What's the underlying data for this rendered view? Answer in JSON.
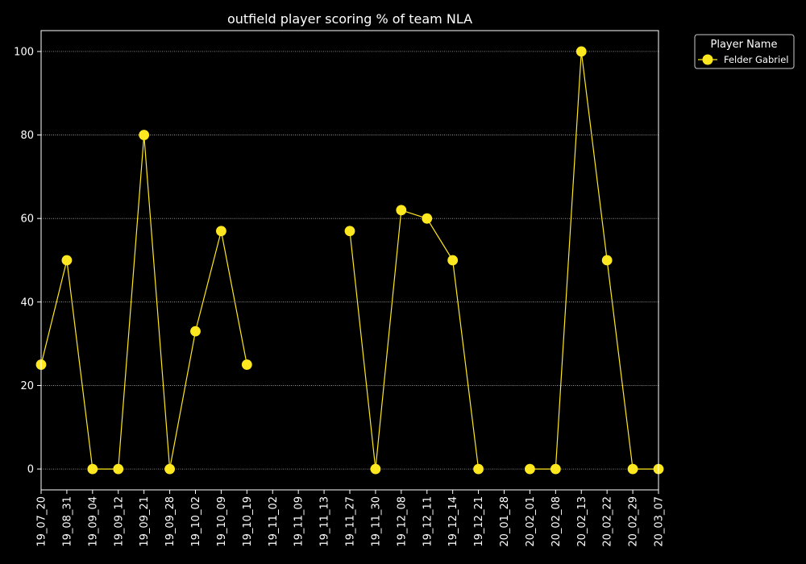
{
  "chart_data": {
    "type": "line",
    "title": "outfield player scoring % of team NLA",
    "xlabel": "",
    "ylabel": "",
    "ylim": [
      -5,
      105
    ],
    "yticks": [
      0,
      20,
      40,
      60,
      80,
      100
    ],
    "grid": "horizontal dotted",
    "legend_placement": "outside top-right",
    "legend_title": "Player Name",
    "categories": [
      "19_07_20",
      "19_08_31",
      "19_09_04",
      "19_09_12",
      "19_09_21",
      "19_09_28",
      "19_10_02",
      "19_10_09",
      "19_10_19",
      "19_11_02",
      "19_11_09",
      "19_11_13",
      "19_11_27",
      "19_11_30",
      "19_12_08",
      "19_12_11",
      "19_12_14",
      "19_12_21",
      "20_01_28",
      "20_02_01",
      "20_02_08",
      "20_02_13",
      "20_02_22",
      "20_02_29",
      "20_03_07"
    ],
    "series": [
      {
        "name": "Felder Gabriel",
        "color": "#ffe81f",
        "values": [
          25,
          50,
          0,
          0,
          80,
          0,
          33,
          57,
          25,
          null,
          null,
          null,
          57,
          0,
          62,
          60,
          50,
          0,
          null,
          0,
          0,
          100,
          50,
          0,
          0
        ]
      }
    ]
  }
}
